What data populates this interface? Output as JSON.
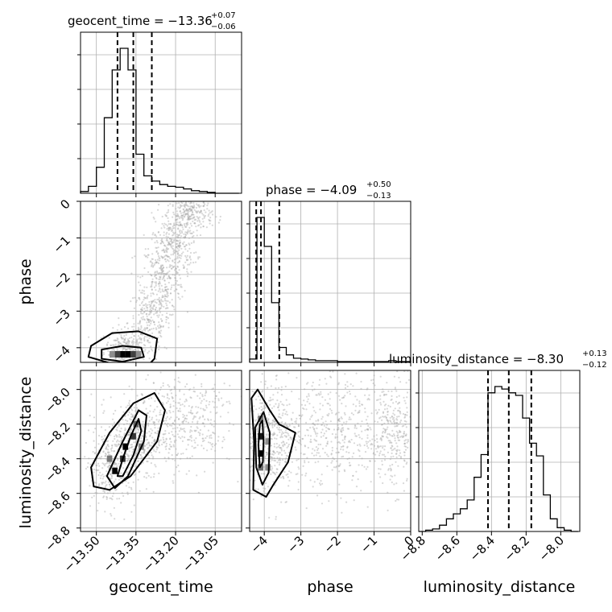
{
  "colors": {
    "background": "#ffffff",
    "grid": "#b0b0b0",
    "ink": "#000000",
    "scatter": "#a8a8a8",
    "density_dark": "#000000",
    "density_mid": "#555555",
    "density_light": "#bbbbbb"
  },
  "chart_data": {
    "type": "corner",
    "parameters": [
      "geocent_time",
      "phase",
      "luminosity_distance"
    ],
    "axes": {
      "geocent_time": {
        "label": "geocent_time",
        "range": [
          -13.56,
          -12.95
        ],
        "ticks": [
          -13.5,
          -13.35,
          -13.2,
          -13.05
        ],
        "tick_labels": [
          "−13.50",
          "−13.35",
          "−13.20",
          "−13.05"
        ]
      },
      "phase": {
        "label": "phase",
        "range": [
          -4.4,
          0.0
        ],
        "ticks": [
          -4,
          -3,
          -2,
          -1,
          0
        ],
        "tick_labels": [
          "−4",
          "−3",
          "−2",
          "−1",
          "0"
        ]
      },
      "luminosity_distance": {
        "label": "luminosity_distance",
        "range": [
          -8.82,
          -7.89
        ],
        "ticks": [
          -8.8,
          -8.6,
          -8.4,
          -8.2,
          -8.0
        ],
        "tick_labels": [
          "−8.8",
          "−8.6",
          "−8.4",
          "−8.2",
          "−8.0"
        ]
      }
    },
    "marginals": [
      {
        "parameter": "geocent_time",
        "title_main": "geocent_time = −13.36",
        "title_sup": "+0.07",
        "title_sub": "−0.06",
        "quantile_lines": [
          -13.42,
          -13.36,
          -13.29
        ],
        "hist_edges": [
          -13.56,
          -13.53,
          -13.5,
          -13.47,
          -13.44,
          -13.41,
          -13.38,
          -13.35,
          -13.32,
          -13.29,
          -13.26,
          -13.23,
          -13.2,
          -13.17,
          -13.14,
          -13.11,
          -13.08,
          -13.05,
          -13.02,
          -12.99,
          -12.96
        ],
        "hist_counts": [
          2,
          8,
          30,
          87,
          142,
          167,
          142,
          45,
          20,
          14,
          10,
          8,
          7,
          5,
          3,
          2,
          1,
          0,
          0,
          0
        ]
      },
      {
        "parameter": "phase",
        "title_main": "phase = −4.09",
        "title_sup": "+0.50",
        "title_sub": "−0.13",
        "quantile_lines": [
          -4.22,
          -4.09,
          -3.59
        ],
        "hist_edges": [
          -4.4,
          -4.2,
          -4.0,
          -3.8,
          -3.6,
          -3.4,
          -3.2,
          -3.0,
          -2.8,
          -2.6,
          -2.4,
          -2.2,
          -2.0,
          -1.8,
          -1.6,
          -1.4,
          -1.2,
          -1.0,
          -0.8,
          -0.6,
          -0.4,
          -0.2,
          0.0
        ],
        "hist_counts": [
          4,
          175,
          140,
          72,
          18,
          9,
          5,
          4,
          3,
          2,
          2,
          2,
          1,
          1,
          1,
          1,
          1,
          1,
          1,
          2,
          1,
          1
        ]
      },
      {
        "parameter": "luminosity_distance",
        "title_main": "luminosity_distance = −8.30",
        "title_sup": "+0.13",
        "title_sub": "−0.12",
        "quantile_lines": [
          -8.42,
          -8.3,
          -8.17
        ],
        "hist_edges": [
          -8.82,
          -8.78,
          -8.74,
          -8.7,
          -8.66,
          -8.62,
          -8.58,
          -8.54,
          -8.5,
          -8.46,
          -8.42,
          -8.38,
          -8.34,
          -8.3,
          -8.26,
          -8.22,
          -8.18,
          -8.14,
          -8.1,
          -8.06,
          -8.02,
          -7.98,
          -7.94,
          -7.9
        ],
        "hist_counts": [
          0,
          1,
          2,
          5,
          10,
          14,
          18,
          25,
          43,
          61,
          110,
          115,
          113,
          110,
          108,
          90,
          70,
          60,
          29,
          10,
          3,
          1,
          0
        ]
      }
    ],
    "pairs": [
      {
        "x": "geocent_time",
        "y": "phase",
        "scatter_clusters": [
          {
            "n": 220,
            "x_mean": -13.39,
            "y_mean": -4.0,
            "x_sd": 0.04,
            "y_sd": 0.25
          },
          {
            "n": 220,
            "x_mean": -13.3,
            "y_mean": -3.3,
            "x_sd": 0.04,
            "y_sd": 0.45
          },
          {
            "n": 300,
            "x_mean": -13.25,
            "y_mean": -2.1,
            "x_sd": 0.04,
            "y_sd": 0.55
          },
          {
            "n": 280,
            "x_mean": -13.2,
            "y_mean": -1.1,
            "x_sd": 0.04,
            "y_sd": 0.45
          },
          {
            "n": 220,
            "x_mean": -13.14,
            "y_mean": -0.35,
            "x_sd": 0.04,
            "y_sd": 0.22
          }
        ],
        "density_cells": [
          {
            "x": -13.4,
            "y": -4.18,
            "level": 1.0
          },
          {
            "x": -13.38,
            "y": -4.18,
            "level": 1.0
          },
          {
            "x": -13.42,
            "y": -4.18,
            "level": 0.7
          },
          {
            "x": -13.36,
            "y": -4.18,
            "level": 0.7
          },
          {
            "x": -13.44,
            "y": -4.18,
            "level": 0.35
          },
          {
            "x": -13.34,
            "y": -4.18,
            "level": 0.35
          }
        ],
        "contours": [
          [
            [
              -13.48,
              -4.05
            ],
            [
              -13.4,
              -3.95
            ],
            [
              -13.33,
              -4.0
            ],
            [
              -13.32,
              -4.25
            ],
            [
              -13.4,
              -4.38
            ],
            [
              -13.48,
              -4.3
            ]
          ],
          [
            [
              -13.52,
              -3.95
            ],
            [
              -13.44,
              -3.6
            ],
            [
              -13.34,
              -3.55
            ],
            [
              -13.27,
              -3.75
            ],
            [
              -13.28,
              -4.3
            ],
            [
              -13.3,
              -4.45
            ],
            [
              -13.42,
              -4.48
            ],
            [
              -13.53,
              -4.25
            ]
          ]
        ]
      },
      {
        "x": "geocent_time",
        "y": "luminosity_distance",
        "scatter_clusters": [
          {
            "n": 300,
            "x_mean": -13.45,
            "y_mean": -8.45,
            "x_sd": 0.05,
            "y_sd": 0.12
          },
          {
            "n": 350,
            "x_mean": -13.35,
            "y_mean": -8.28,
            "x_sd": 0.05,
            "y_sd": 0.12
          },
          {
            "n": 260,
            "x_mean": -13.22,
            "y_mean": -8.2,
            "x_sd": 0.06,
            "y_sd": 0.13
          },
          {
            "n": 150,
            "x_mean": -13.1,
            "y_mean": -8.15,
            "x_sd": 0.06,
            "y_sd": 0.15
          }
        ],
        "density_cells": [
          {
            "x": -13.43,
            "y": -8.47,
            "level": 1.0
          },
          {
            "x": -13.4,
            "y": -8.4,
            "level": 0.8
          },
          {
            "x": -13.39,
            "y": -8.33,
            "level": 1.0
          },
          {
            "x": -13.36,
            "y": -8.27,
            "level": 0.75
          },
          {
            "x": -13.35,
            "y": -8.2,
            "level": 0.55
          },
          {
            "x": -13.45,
            "y": -8.4,
            "level": 0.45
          },
          {
            "x": -13.33,
            "y": -8.33,
            "level": 0.4
          }
        ],
        "contours": [
          [
            [
              -13.42,
              -8.5
            ],
            [
              -13.4,
              -8.4
            ],
            [
              -13.37,
              -8.27
            ],
            [
              -13.34,
              -8.17
            ],
            [
              -13.33,
              -8.24
            ],
            [
              -13.36,
              -8.38
            ],
            [
              -13.4,
              -8.5
            ]
          ],
          [
            [
              -13.46,
              -8.5
            ],
            [
              -13.4,
              -8.3
            ],
            [
              -13.34,
              -8.12
            ],
            [
              -13.31,
              -8.15
            ],
            [
              -13.32,
              -8.3
            ],
            [
              -13.38,
              -8.5
            ],
            [
              -13.43,
              -8.57
            ]
          ],
          [
            [
              -13.52,
              -8.45
            ],
            [
              -13.45,
              -8.25
            ],
            [
              -13.36,
              -8.08
            ],
            [
              -13.28,
              -8.02
            ],
            [
              -13.24,
              -8.12
            ],
            [
              -13.27,
              -8.3
            ],
            [
              -13.37,
              -8.5
            ],
            [
              -13.45,
              -8.58
            ],
            [
              -13.51,
              -8.56
            ]
          ]
        ]
      },
      {
        "x": "phase",
        "y": "luminosity_distance",
        "scatter_clusters": [
          {
            "n": 450,
            "x_mean": -3.9,
            "y_mean": -8.28,
            "x_sd": 0.35,
            "y_sd": 0.15
          },
          {
            "n": 500,
            "x_mean": -2.2,
            "y_mean": -8.25,
            "x_sd": 0.9,
            "y_sd": 0.17
          },
          {
            "n": 300,
            "x_mean": -0.5,
            "y_mean": -8.25,
            "x_sd": 0.3,
            "y_sd": 0.16
          }
        ],
        "density_cells": [
          {
            "x": -4.1,
            "y": -8.17,
            "level": 0.45
          },
          {
            "x": -4.1,
            "y": -8.27,
            "level": 0.9
          },
          {
            "x": -4.1,
            "y": -8.37,
            "level": 1.0
          },
          {
            "x": -4.1,
            "y": -8.45,
            "level": 0.5
          },
          {
            "x": -3.9,
            "y": -8.3,
            "level": 0.35
          },
          {
            "x": -3.9,
            "y": -8.45,
            "level": 0.35
          }
        ],
        "contours": [
          [
            [
              -4.12,
              -8.2
            ],
            [
              -4.05,
              -8.18
            ],
            [
              -4.02,
              -8.3
            ],
            [
              -4.04,
              -8.42
            ],
            [
              -4.12,
              -8.45
            ],
            [
              -4.16,
              -8.32
            ]
          ],
          [
            [
              -4.25,
              -8.22
            ],
            [
              -4.02,
              -8.13
            ],
            [
              -3.85,
              -8.25
            ],
            [
              -3.88,
              -8.48
            ],
            [
              -4.05,
              -8.55
            ],
            [
              -4.22,
              -8.45
            ]
          ],
          [
            [
              -4.35,
              -8.05
            ],
            [
              -4.18,
              -8.0
            ],
            [
              -3.85,
              -8.12
            ],
            [
              -3.6,
              -8.2
            ],
            [
              -3.15,
              -8.25
            ],
            [
              -3.35,
              -8.42
            ],
            [
              -3.75,
              -8.55
            ],
            [
              -3.95,
              -8.62
            ],
            [
              -4.3,
              -8.58
            ],
            [
              -4.28,
              -8.3
            ]
          ]
        ]
      }
    ],
    "grid": true
  }
}
